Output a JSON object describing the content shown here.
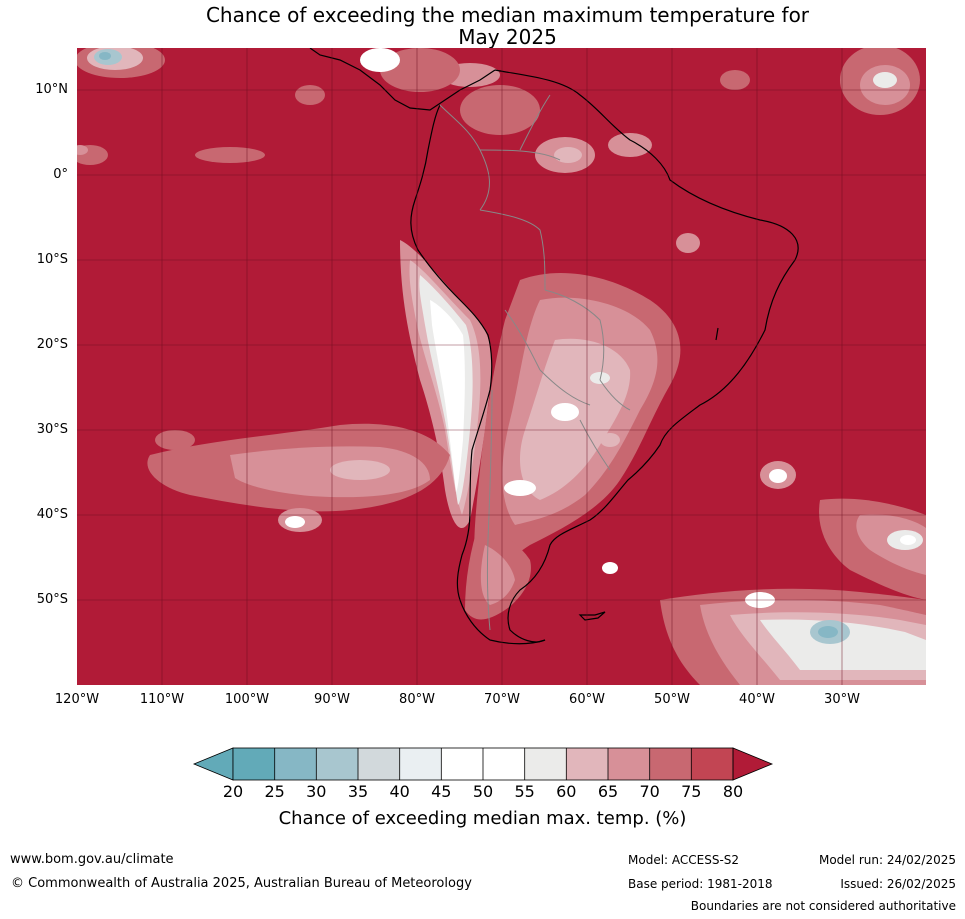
{
  "title_line1": "Chance of exceeding the median maximum temperature for",
  "title_line2": "May 2025",
  "map": {
    "lat_labels": [
      "10°N",
      "0°",
      "10°S",
      "20°S",
      "30°S",
      "40°S",
      "50°S"
    ],
    "lon_labels": [
      "120°W",
      "110°W",
      "100°W",
      "90°W",
      "80°W",
      "70°W",
      "60°W",
      "50°W",
      "40°W",
      "30°W"
    ],
    "colors": {
      "high": "#b11b37",
      "c75": "#c24553",
      "c70": "#c86871",
      "c65": "#d79098",
      "c60": "#e1b6bb",
      "c55": "#ebebea",
      "c50": "#ffffff",
      "c40": "#eaeff2",
      "c35": "#d2d9dc",
      "c30": "#a8c6cf",
      "c25": "#86b7c5",
      "c20": "#62aab8"
    }
  },
  "colorbar": {
    "ticks": [
      "20",
      "25",
      "30",
      "35",
      "40",
      "45",
      "50",
      "55",
      "60",
      "65",
      "70",
      "75",
      "80"
    ],
    "label": "Chance of exceeding median max. temp. (%)"
  },
  "footer": {
    "website": "www.bom.gov.au/climate",
    "copyright": "© Commonwealth of Australia 2025, Australian Bureau of Meteorology",
    "model": "Model: ACCESS-S2",
    "base_period": "Base period: 1981-2018",
    "model_run": "Model run: 24/02/2025",
    "issued": "Issued: 26/02/2025",
    "disclaimer": "Boundaries are not considered authoritative"
  }
}
